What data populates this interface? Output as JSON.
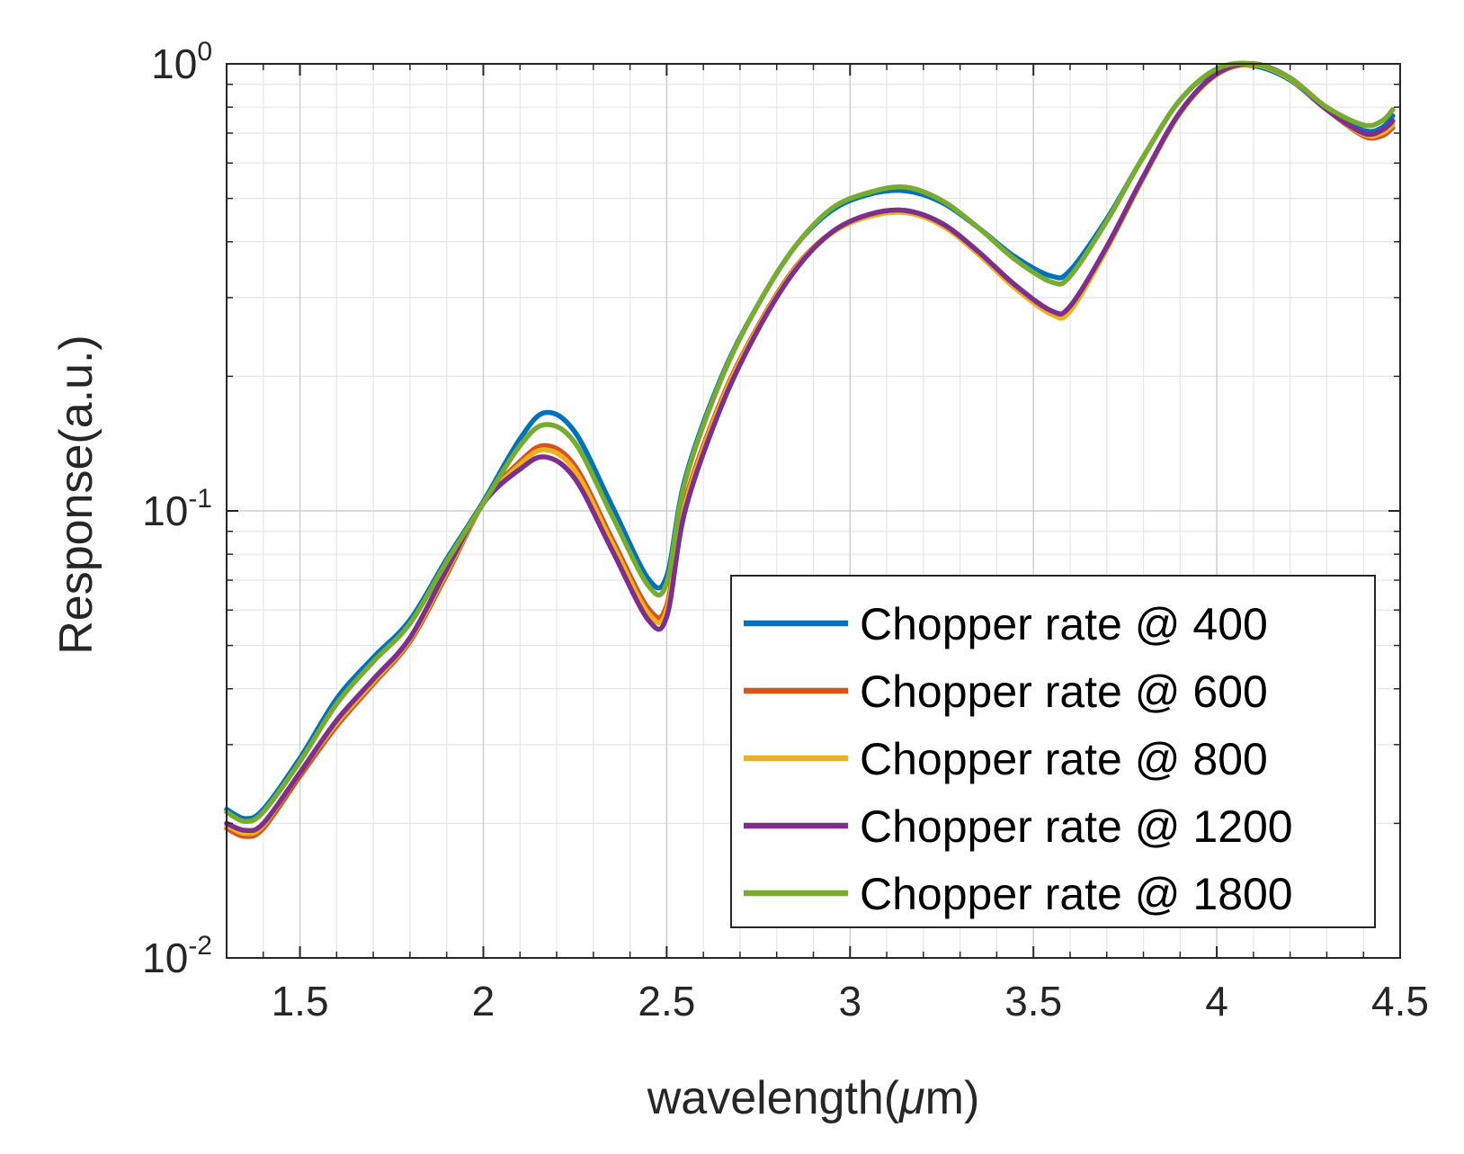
{
  "chart_data": {
    "type": "line",
    "x_scale": "linear",
    "y_scale": "log",
    "xlabel": "wavelength(",
    "xlabel_mu": "μ",
    "xlabel_tail": "m)",
    "ylabel": "Response(a.u.)",
    "xlim": [
      1.3,
      4.5
    ],
    "ylim": [
      0.01,
      1
    ],
    "x_ticks": [
      1.5,
      2,
      2.5,
      3,
      3.5,
      4,
      4.5
    ],
    "x_tick_labels": [
      "1.5",
      "2",
      "2.5",
      "3",
      "3.5",
      "4",
      "4.5"
    ],
    "y_ticks": [
      {
        "value": 1,
        "base": "10",
        "exp": "0"
      },
      {
        "value": 0.1,
        "base": "10",
        "exp": "-1"
      },
      {
        "value": 0.01,
        "base": "10",
        "exp": "-2"
      }
    ],
    "grid": true,
    "minor_grid": true,
    "legend_position": "bottom-right",
    "series": [
      {
        "name": "Chopper rate @ 400",
        "color": "#0072BD",
        "x": [
          1.3,
          1.35,
          1.4,
          1.5,
          1.6,
          1.7,
          1.8,
          1.9,
          2.0,
          2.1,
          2.17,
          2.25,
          2.35,
          2.45,
          2.5,
          2.55,
          2.65,
          2.75,
          2.85,
          2.95,
          3.05,
          3.15,
          3.25,
          3.35,
          3.45,
          3.55,
          3.6,
          3.7,
          3.8,
          3.9,
          4.0,
          4.1,
          4.2,
          4.3,
          4.4,
          4.45,
          4.48
        ],
        "y": [
          0.0215,
          0.0205,
          0.0215,
          0.028,
          0.038,
          0.047,
          0.057,
          0.078,
          0.105,
          0.145,
          0.166,
          0.15,
          0.103,
          0.0705,
          0.0715,
          0.118,
          0.2,
          0.29,
          0.39,
          0.47,
          0.51,
          0.52,
          0.49,
          0.43,
          0.37,
          0.335,
          0.345,
          0.45,
          0.62,
          0.83,
          0.97,
          0.99,
          0.92,
          0.79,
          0.71,
          0.72,
          0.765
        ]
      },
      {
        "name": "Chopper rate @ 600",
        "color": "#D95319",
        "x": [
          1.3,
          1.35,
          1.4,
          1.5,
          1.6,
          1.7,
          1.8,
          1.9,
          2.0,
          2.1,
          2.17,
          2.25,
          2.35,
          2.45,
          2.5,
          2.55,
          2.65,
          2.75,
          2.85,
          2.95,
          3.05,
          3.15,
          3.25,
          3.35,
          3.45,
          3.55,
          3.6,
          3.7,
          3.8,
          3.9,
          4.0,
          4.1,
          4.2,
          4.3,
          4.4,
          4.45,
          4.48
        ],
        "y": [
          0.0195,
          0.0187,
          0.0195,
          0.0255,
          0.033,
          0.041,
          0.051,
          0.072,
          0.104,
          0.129,
          0.14,
          0.126,
          0.087,
          0.0605,
          0.0615,
          0.105,
          0.178,
          0.26,
          0.35,
          0.42,
          0.46,
          0.47,
          0.44,
          0.38,
          0.32,
          0.28,
          0.285,
          0.39,
          0.56,
          0.78,
          0.95,
          1.0,
          0.93,
          0.79,
          0.69,
          0.69,
          0.72
        ]
      },
      {
        "name": "Chopper rate @ 800",
        "color": "#EDB120",
        "x": [
          1.3,
          1.35,
          1.4,
          1.5,
          1.6,
          1.7,
          1.8,
          1.9,
          2.0,
          2.1,
          2.17,
          2.25,
          2.35,
          2.45,
          2.5,
          2.55,
          2.65,
          2.75,
          2.85,
          2.95,
          3.05,
          3.15,
          3.25,
          3.35,
          3.45,
          3.55,
          3.6,
          3.7,
          3.8,
          3.9,
          4.0,
          4.1,
          4.2,
          4.3,
          4.4,
          4.45,
          4.48
        ],
        "y": [
          0.0198,
          0.019,
          0.0198,
          0.026,
          0.0335,
          0.0415,
          0.0515,
          0.073,
          0.104,
          0.127,
          0.137,
          0.123,
          0.085,
          0.059,
          0.06,
          0.103,
          0.176,
          0.258,
          0.348,
          0.418,
          0.455,
          0.465,
          0.435,
          0.375,
          0.315,
          0.275,
          0.28,
          0.385,
          0.555,
          0.775,
          0.945,
          0.995,
          0.925,
          0.79,
          0.695,
          0.7,
          0.73
        ]
      },
      {
        "name": "Chopper rate @ 1200",
        "color": "#7E2F8E",
        "x": [
          1.3,
          1.35,
          1.4,
          1.5,
          1.6,
          1.7,
          1.8,
          1.9,
          2.0,
          2.1,
          2.17,
          2.25,
          2.35,
          2.45,
          2.5,
          2.55,
          2.65,
          2.75,
          2.85,
          2.95,
          3.05,
          3.15,
          3.25,
          3.35,
          3.45,
          3.55,
          3.6,
          3.7,
          3.8,
          3.9,
          4.0,
          4.1,
          4.2,
          4.3,
          4.4,
          4.45,
          4.48
        ],
        "y": [
          0.02,
          0.0193,
          0.02,
          0.026,
          0.034,
          0.042,
          0.052,
          0.074,
          0.104,
          0.124,
          0.132,
          0.118,
          0.082,
          0.057,
          0.058,
          0.1,
          0.172,
          0.255,
          0.345,
          0.42,
          0.46,
          0.47,
          0.44,
          0.38,
          0.32,
          0.28,
          0.287,
          0.39,
          0.56,
          0.78,
          0.95,
          1.0,
          0.93,
          0.79,
          0.7,
          0.71,
          0.745
        ]
      },
      {
        "name": "Chopper rate @ 1800",
        "color": "#77AC30",
        "x": [
          1.3,
          1.35,
          1.4,
          1.5,
          1.6,
          1.7,
          1.8,
          1.9,
          2.0,
          2.1,
          2.17,
          2.25,
          2.35,
          2.45,
          2.5,
          2.55,
          2.65,
          2.75,
          2.85,
          2.95,
          3.05,
          3.15,
          3.25,
          3.35,
          3.45,
          3.55,
          3.6,
          3.7,
          3.8,
          3.9,
          4.0,
          4.1,
          4.2,
          4.3,
          4.4,
          4.45,
          4.48
        ],
        "y": [
          0.0212,
          0.0202,
          0.0212,
          0.0275,
          0.037,
          0.046,
          0.056,
          0.077,
          0.104,
          0.14,
          0.156,
          0.142,
          0.098,
          0.068,
          0.069,
          0.116,
          0.198,
          0.29,
          0.39,
          0.475,
          0.515,
          0.53,
          0.495,
          0.43,
          0.365,
          0.325,
          0.335,
          0.445,
          0.62,
          0.83,
          0.975,
          1.0,
          0.93,
          0.8,
          0.73,
          0.745,
          0.79
        ]
      }
    ]
  }
}
